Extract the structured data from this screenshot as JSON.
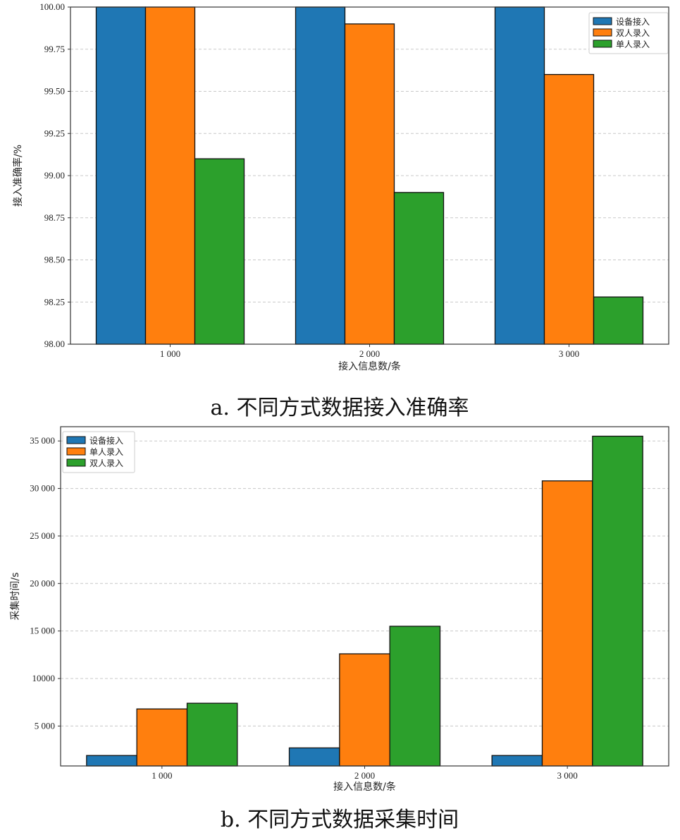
{
  "chart_data": [
    {
      "type": "bar",
      "caption": "a. 不同方式数据接入准确率",
      "xlabel": "接入信息数/条",
      "ylabel": "接入准确率/%",
      "categories": [
        "1 000",
        "2 000",
        "3 000"
      ],
      "series": [
        {
          "name": "设备接入",
          "color": "#1f77b4",
          "values": [
            100.0,
            100.0,
            100.0
          ]
        },
        {
          "name": "双人录入",
          "color": "#ff7f0e",
          "values": [
            100.0,
            99.9,
            99.6
          ]
        },
        {
          "name": "单人录入",
          "color": "#2ca02c",
          "values": [
            99.1,
            98.9,
            98.28
          ]
        }
      ],
      "ylim": [
        98.0,
        100.0
      ],
      "yticks": [
        98.0,
        98.25,
        98.5,
        98.75,
        99.0,
        99.25,
        99.5,
        99.75,
        100.0
      ],
      "ytick_labels": [
        "98.00",
        "98.25",
        "98.50",
        "98.75",
        "99.00",
        "99.25",
        "99.50",
        "99.75",
        "100.00"
      ],
      "grid": "horizontal dashed",
      "legend_position": "top-right"
    },
    {
      "type": "bar",
      "caption": "b. 不同方式数据采集时间",
      "xlabel": "接入信息数/条",
      "ylabel": "采集时间/s",
      "categories": [
        "1 000",
        "2 000",
        "3 000"
      ],
      "series": [
        {
          "name": "设备接入",
          "color": "#1f77b4",
          "values": [
            1900,
            2700,
            1900
          ]
        },
        {
          "name": "单人录入",
          "color": "#ff7f0e",
          "values": [
            6800,
            12600,
            30800
          ]
        },
        {
          "name": "双人录入",
          "color": "#2ca02c",
          "values": [
            7400,
            15500,
            35500
          ]
        }
      ],
      "ylim": [
        800,
        36500
      ],
      "yticks": [
        5000,
        10000,
        15000,
        20000,
        25000,
        30000,
        35000
      ],
      "ytick_labels": [
        "5 000",
        "10000",
        "15 000",
        "20 000",
        "25 000",
        "30 000",
        "35 000"
      ],
      "grid": "horizontal dashed",
      "legend_position": "top-left"
    }
  ]
}
